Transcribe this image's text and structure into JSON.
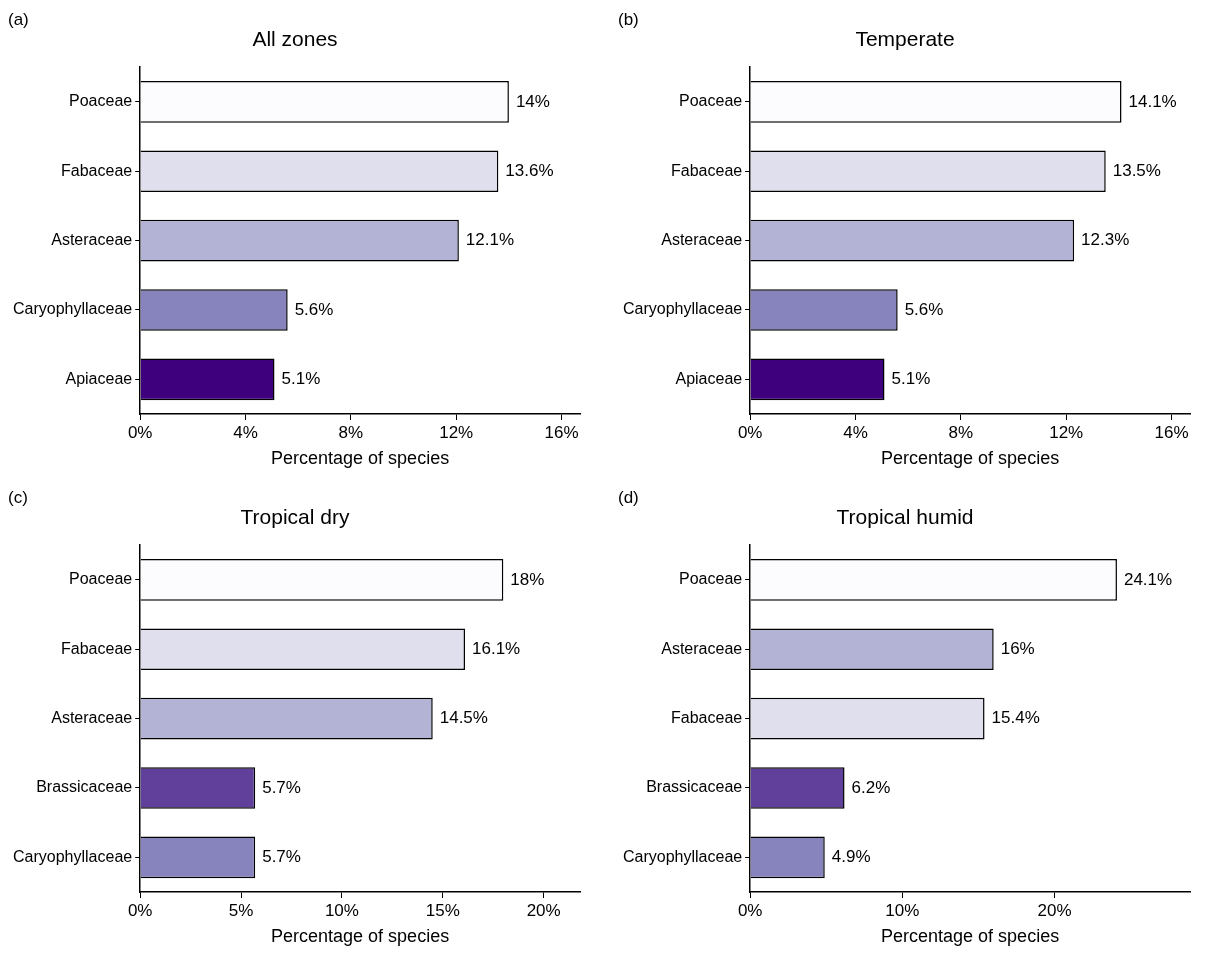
{
  "chart_data": [
    {
      "type": "bar",
      "orientation": "horizontal",
      "title": "All zones",
      "annotations": [
        "(a)"
      ],
      "xlabel": "Percentage of species",
      "categories": [
        "Poaceae",
        "Fabaceae",
        "Asteraceae",
        "Caryophyllaceae",
        "Apiaceae"
      ],
      "values": [
        14,
        13.6,
        12.1,
        5.6,
        5.1
      ],
      "value_labels": [
        "14%",
        "13.6%",
        "12.1%",
        "5.6%",
        "5.1%"
      ],
      "colors": [
        "#fcfbfd",
        "#e0dfee",
        "#b3b3d6",
        "#8683bd",
        "#3f007d"
      ],
      "xlim": [
        0,
        16.7
      ],
      "xticks": [
        {
          "value": 0,
          "label": "0%"
        },
        {
          "value": 4,
          "label": "4%"
        },
        {
          "value": 8,
          "label": "8%"
        },
        {
          "value": 12,
          "label": "12%"
        },
        {
          "value": 16,
          "label": "16%"
        }
      ],
      "grid": false,
      "legend": false
    },
    {
      "type": "bar",
      "orientation": "horizontal",
      "title": "Temperate",
      "annotations": [
        "(b)"
      ],
      "xlabel": "Percentage of species",
      "categories": [
        "Poaceae",
        "Fabaceae",
        "Asteraceae",
        "Caryophyllaceae",
        "Apiaceae"
      ],
      "values": [
        14.1,
        13.5,
        12.3,
        5.6,
        5.1
      ],
      "value_labels": [
        "14.1%",
        "13.5%",
        "12.3%",
        "5.6%",
        "5.1%"
      ],
      "colors": [
        "#fcfbfd",
        "#e0dfee",
        "#b3b3d6",
        "#8683bd",
        "#3f007d"
      ],
      "xlim": [
        0,
        16.7
      ],
      "xticks": [
        {
          "value": 0,
          "label": "0%"
        },
        {
          "value": 4,
          "label": "4%"
        },
        {
          "value": 8,
          "label": "8%"
        },
        {
          "value": 12,
          "label": "12%"
        },
        {
          "value": 16,
          "label": "16%"
        }
      ],
      "grid": false,
      "legend": false
    },
    {
      "type": "bar",
      "orientation": "horizontal",
      "title": "Tropical dry",
      "annotations": [
        "(c)"
      ],
      "xlabel": "Percentage of species",
      "categories": [
        "Poaceae",
        "Fabaceae",
        "Asteraceae",
        "Brassicaceae",
        "Caryophyllaceae"
      ],
      "values": [
        18,
        16.1,
        14.5,
        5.7,
        5.7
      ],
      "value_labels": [
        "18%",
        "16.1%",
        "14.5%",
        "5.7%",
        "5.7%"
      ],
      "colors": [
        "#fcfbfd",
        "#e0dfee",
        "#b3b3d6",
        "#61409b",
        "#8683bd"
      ],
      "xlim": [
        0,
        21.8
      ],
      "xticks": [
        {
          "value": 0,
          "label": "0%"
        },
        {
          "value": 5,
          "label": "5%"
        },
        {
          "value": 10,
          "label": "10%"
        },
        {
          "value": 15,
          "label": "15%"
        },
        {
          "value": 20,
          "label": "20%"
        }
      ],
      "grid": false,
      "legend": false
    },
    {
      "type": "bar",
      "orientation": "horizontal",
      "title": "Tropical humid",
      "annotations": [
        "(d)"
      ],
      "xlabel": "Percentage of species",
      "categories": [
        "Poaceae",
        "Asteraceae",
        "Fabaceae",
        "Brassicaceae",
        "Caryophyllaceae"
      ],
      "values": [
        24.1,
        16,
        15.4,
        6.2,
        4.9
      ],
      "value_labels": [
        "24.1%",
        "16%",
        "15.4%",
        "6.2%",
        "4.9%"
      ],
      "colors": [
        "#fcfbfd",
        "#b3b3d6",
        "#e0dfee",
        "#61409b",
        "#8683bd"
      ],
      "xlim": [
        0,
        28.9
      ],
      "xticks": [
        {
          "value": 0,
          "label": "0%"
        },
        {
          "value": 10,
          "label": "10%"
        },
        {
          "value": 20,
          "label": "20%"
        }
      ],
      "grid": false,
      "legend": false
    }
  ]
}
